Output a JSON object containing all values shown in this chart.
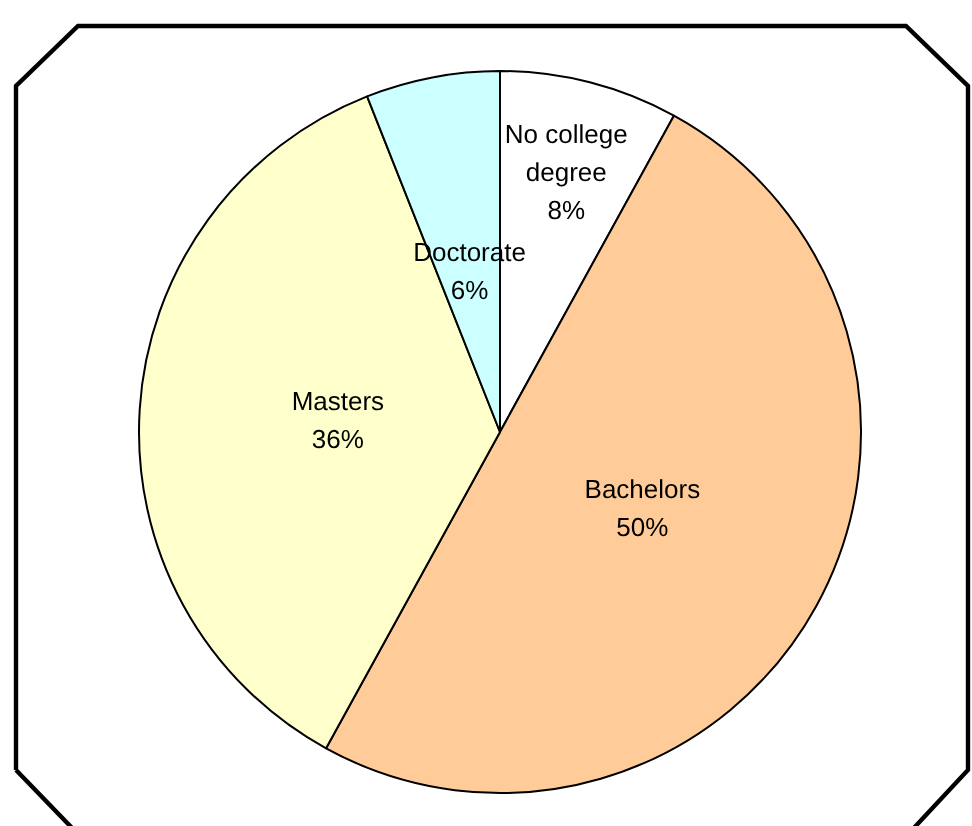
{
  "chart_data": {
    "type": "pie",
    "categories": [
      "No college degree",
      "Bachelors",
      "Masters",
      "Doctorate"
    ],
    "values": [
      8,
      50,
      36,
      6
    ],
    "colors": [
      "#ffffff",
      "#ffcc99",
      "#ffffcc",
      "#ccffff"
    ],
    "value_labels": [
      "8%",
      "50%",
      "36%",
      "6%"
    ],
    "legend": false
  }
}
